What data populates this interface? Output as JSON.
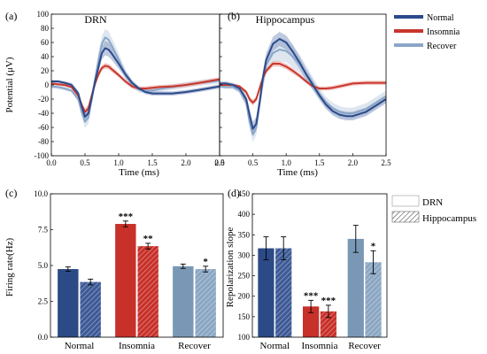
{
  "chart_data": [
    {
      "panel": "(a)",
      "type": "line",
      "title": "DRN",
      "xlabel": "Time (ms)",
      "ylabel": "Potential (μV)",
      "xlim": [
        0.0,
        2.5
      ],
      "ylim": [
        -100,
        100
      ],
      "xticks": [
        "0.0",
        "0.5",
        "1.0",
        "1.5",
        "2.0",
        "2.5"
      ],
      "yticks": [
        "-100",
        "-80",
        "-60",
        "-40",
        "-20",
        "0",
        "20",
        "40",
        "60",
        "80",
        "100"
      ],
      "series": [
        {
          "name": "Normal",
          "color": "#2b4a8a",
          "band_color": "#8a9cc4",
          "x": [
            0,
            0.1,
            0.2,
            0.3,
            0.4,
            0.45,
            0.5,
            0.55,
            0.6,
            0.65,
            0.7,
            0.75,
            0.8,
            0.85,
            0.9,
            1.0,
            1.1,
            1.2,
            1.3,
            1.4,
            1.5,
            1.6,
            1.8,
            2.0,
            2.2,
            2.5
          ],
          "y": [
            5,
            5,
            3,
            0,
            -12,
            -30,
            -45,
            -40,
            -18,
            5,
            25,
            45,
            52,
            50,
            44,
            30,
            15,
            3,
            -5,
            -10,
            -12,
            -12,
            -12,
            -10,
            -7,
            -2
          ],
          "band": [
            2,
            2,
            2,
            3,
            4,
            6,
            8,
            8,
            8,
            8,
            8,
            9,
            10,
            10,
            9,
            7,
            5,
            4,
            3,
            3,
            3,
            3,
            3,
            3,
            3,
            3
          ]
        },
        {
          "name": "Insomnia",
          "color": "#c8372d",
          "band_color": "#e89a94",
          "x": [
            0,
            0.1,
            0.2,
            0.3,
            0.4,
            0.45,
            0.5,
            0.55,
            0.6,
            0.65,
            0.7,
            0.75,
            0.8,
            0.85,
            0.9,
            1.0,
            1.1,
            1.2,
            1.3,
            1.4,
            1.5,
            1.6,
            1.8,
            2.0,
            2.2,
            2.5
          ],
          "y": [
            2,
            1,
            0,
            -3,
            -15,
            -28,
            -38,
            -33,
            -15,
            2,
            15,
            24,
            27,
            26,
            22,
            14,
            5,
            -2,
            -5,
            -5,
            -4,
            -3,
            -2,
            0,
            3,
            8
          ],
          "band": [
            2,
            2,
            2,
            2,
            3,
            4,
            5,
            5,
            4,
            4,
            4,
            4,
            4,
            4,
            4,
            3,
            3,
            3,
            3,
            3,
            3,
            3,
            3,
            3,
            3,
            3
          ]
        },
        {
          "name": "Recover",
          "color": "#8aa6c8",
          "band_color": "#c2d1e3",
          "x": [
            0,
            0.1,
            0.2,
            0.3,
            0.4,
            0.45,
            0.5,
            0.55,
            0.6,
            0.65,
            0.7,
            0.75,
            0.8,
            0.85,
            0.9,
            1.0,
            1.1,
            1.2,
            1.3,
            1.4,
            1.5,
            1.6,
            1.8,
            2.0,
            2.2,
            2.5
          ],
          "y": [
            -2,
            -3,
            -5,
            -8,
            -20,
            -38,
            -52,
            -46,
            -20,
            8,
            35,
            58,
            67,
            64,
            55,
            36,
            15,
            0,
            -6,
            -8,
            -8,
            -6,
            -3,
            0,
            3,
            6
          ],
          "band": [
            3,
            3,
            3,
            3,
            4,
            6,
            9,
            9,
            9,
            9,
            10,
            11,
            12,
            12,
            11,
            9,
            7,
            5,
            4,
            4,
            4,
            4,
            4,
            4,
            4,
            4
          ]
        }
      ]
    },
    {
      "panel": "(b)",
      "type": "line",
      "title": "Hippocampus",
      "xlabel": "Time (ms)",
      "xlim": [
        0.0,
        2.5
      ],
      "ylim": [
        -100,
        100
      ],
      "xticks": [
        "0.0",
        "0.5",
        "1.0",
        "1.5",
        "2.0",
        "2.5"
      ],
      "series": [
        {
          "name": "Normal",
          "color": "#2b4a8a",
          "band_color": "#8a9cc4",
          "x": [
            0,
            0.1,
            0.2,
            0.3,
            0.4,
            0.45,
            0.5,
            0.55,
            0.6,
            0.65,
            0.7,
            0.8,
            0.9,
            1.0,
            1.1,
            1.2,
            1.3,
            1.4,
            1.5,
            1.6,
            1.7,
            1.8,
            1.9,
            2.0,
            2.2,
            2.5
          ],
          "y": [
            2,
            2,
            0,
            -5,
            -20,
            -42,
            -62,
            -55,
            -25,
            10,
            35,
            58,
            65,
            60,
            47,
            32,
            15,
            0,
            -15,
            -28,
            -37,
            -42,
            -44,
            -44,
            -38,
            -20
          ],
          "band": [
            3,
            3,
            3,
            4,
            6,
            8,
            10,
            10,
            10,
            10,
            10,
            10,
            10,
            10,
            10,
            9,
            8,
            7,
            6,
            6,
            6,
            6,
            6,
            6,
            6,
            6
          ]
        },
        {
          "name": "Insomnia",
          "color": "#c8372d",
          "band_color": "#e89a94",
          "x": [
            0,
            0.1,
            0.2,
            0.3,
            0.4,
            0.45,
            0.5,
            0.55,
            0.6,
            0.65,
            0.7,
            0.8,
            0.9,
            1.0,
            1.1,
            1.2,
            1.3,
            1.4,
            1.5,
            1.6,
            1.7,
            1.8,
            1.9,
            2.0,
            2.2,
            2.5
          ],
          "y": [
            0,
            0,
            0,
            -2,
            -10,
            -20,
            -25,
            -20,
            -5,
            10,
            20,
            30,
            30,
            26,
            20,
            13,
            5,
            -2,
            -5,
            -5,
            -4,
            -2,
            0,
            2,
            3,
            3
          ],
          "band": [
            2,
            2,
            2,
            2,
            3,
            4,
            4,
            4,
            4,
            4,
            4,
            4,
            4,
            4,
            4,
            3,
            3,
            3,
            3,
            3,
            3,
            3,
            3,
            3,
            3,
            3
          ]
        },
        {
          "name": "Recover",
          "color": "#8aa6c8",
          "band_color": "#c2d1e3",
          "x": [
            0,
            0.1,
            0.2,
            0.3,
            0.4,
            0.45,
            0.5,
            0.55,
            0.6,
            0.65,
            0.7,
            0.8,
            0.9,
            1.0,
            1.1,
            1.2,
            1.3,
            1.4,
            1.5,
            1.6,
            1.7,
            1.8,
            1.9,
            2.0,
            2.2,
            2.5
          ],
          "y": [
            -2,
            -3,
            -3,
            -8,
            -25,
            -52,
            -70,
            -60,
            -28,
            5,
            28,
            45,
            50,
            48,
            40,
            30,
            16,
            2,
            -13,
            -25,
            -33,
            -38,
            -40,
            -40,
            -34,
            -16
          ],
          "band": [
            3,
            3,
            3,
            4,
            6,
            9,
            11,
            11,
            11,
            11,
            12,
            14,
            16,
            16,
            15,
            13,
            11,
            9,
            8,
            8,
            8,
            8,
            8,
            8,
            8,
            8
          ]
        }
      ]
    },
    {
      "panel": "(c)",
      "type": "bar",
      "ylabel": "Firing rate(Hz)",
      "ylim": [
        0,
        10
      ],
      "yticks": [
        "0.0",
        "2.5",
        "5.0",
        "7.5",
        "10.0"
      ],
      "categories": [
        "Normal",
        "Insomnia",
        "Recover"
      ],
      "series": [
        {
          "name": "DRN",
          "values": [
            4.75,
            7.9,
            4.95
          ],
          "errors": [
            0.15,
            0.2,
            0.15
          ],
          "annotations": [
            "",
            "***",
            ""
          ]
        },
        {
          "name": "Hippocampus",
          "values": [
            3.85,
            6.35,
            4.75
          ],
          "errors": [
            0.2,
            0.2,
            0.2
          ],
          "annotations": [
            "",
            "**",
            "*"
          ]
        }
      ]
    },
    {
      "panel": "(d)",
      "type": "bar",
      "ylabel": "Repolarization slope",
      "ylim": [
        100,
        450
      ],
      "yticks": [
        "100",
        "150",
        "200",
        "250",
        "300",
        "350",
        "400",
        "450"
      ],
      "categories": [
        "Normal",
        "Insomnia",
        "Recover"
      ],
      "series": [
        {
          "name": "DRN",
          "values": [
            317,
            175,
            340
          ],
          "errors": [
            28,
            15,
            33
          ],
          "annotations": [
            "",
            "***",
            ""
          ]
        },
        {
          "name": "Hippocampus",
          "values": [
            317,
            163,
            283
          ],
          "errors": [
            28,
            15,
            28
          ],
          "annotations": [
            "",
            "***",
            "*"
          ]
        }
      ]
    }
  ],
  "legend_top": {
    "items": [
      "Normal",
      "Insomnia",
      "Recover"
    ]
  },
  "legend_bottom": {
    "items": [
      "DRN",
      "Hippocampus"
    ]
  },
  "bar_colors": {
    "Normal": {
      "drn": "#2c4a85",
      "hip": "#3d5a96"
    },
    "Insomnia": {
      "drn": "#c8302a",
      "hip": "#c8302a"
    },
    "Recover": {
      "drn": "#7a98b5",
      "hip": "#8aa6c2"
    }
  }
}
